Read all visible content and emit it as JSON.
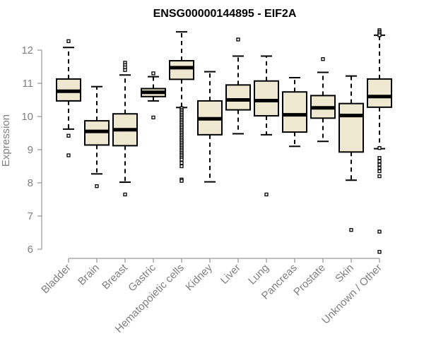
{
  "chart_data": {
    "type": "boxplot",
    "title": "ENSG00000144895 - EIF2A",
    "xlabel": "",
    "ylabel": "Expression",
    "ylim": [
      5.7,
      12.9
    ],
    "yticks": [
      6,
      7,
      8,
      9,
      10,
      11,
      12
    ],
    "grid": false,
    "legend": "none",
    "colors": {
      "box_fill": "#efe8d0",
      "stroke": "#000000",
      "axis": "#808080",
      "label": "#808080"
    },
    "categories": [
      "Bladder",
      "Brain",
      "Breast",
      "Gastric",
      "Hematopoietic cells",
      "Kidney",
      "Liver",
      "Lung",
      "Pancreas",
      "Prostate",
      "Skin",
      "Unknown / Other"
    ],
    "boxes": [
      {
        "name": "Bladder",
        "whisker_low": 9.62,
        "q1": 10.47,
        "median": 10.76,
        "q3": 11.13,
        "whisker_high": 12.08,
        "outliers": [
          12.27,
          9.42,
          8.83
        ]
      },
      {
        "name": "Brain",
        "whisker_low": 8.27,
        "q1": 9.14,
        "median": 9.55,
        "q3": 9.87,
        "whisker_high": 10.9,
        "outliers": [
          7.9
        ]
      },
      {
        "name": "Breast",
        "whisker_low": 8.02,
        "q1": 9.12,
        "median": 9.6,
        "q3": 10.08,
        "whisker_high": 11.25,
        "outliers": [
          11.62,
          11.55,
          11.48,
          11.4,
          7.65
        ]
      },
      {
        "name": "Gastric",
        "whisker_low": 10.47,
        "q1": 10.6,
        "median": 10.73,
        "q3": 10.84,
        "whisker_high": 11.2,
        "outliers": [
          11.3,
          9.97
        ]
      },
      {
        "name": "Hematopoietic cells",
        "whisker_low": 10.27,
        "q1": 11.12,
        "median": 11.47,
        "q3": 11.68,
        "whisker_high": 12.55,
        "outliers": [
          10.25,
          10.2,
          10.15,
          10.1,
          10.05,
          10.0,
          9.95,
          9.9,
          9.85,
          9.8,
          9.75,
          9.7,
          9.65,
          9.6,
          9.55,
          9.5,
          9.45,
          9.4,
          9.35,
          9.3,
          9.25,
          9.2,
          9.15,
          9.1,
          9.05,
          9.0,
          8.95,
          8.9,
          8.85,
          8.8,
          8.75,
          8.7,
          8.6,
          8.5,
          8.1,
          8.06
        ]
      },
      {
        "name": "Kidney",
        "whisker_low": 8.03,
        "q1": 9.45,
        "median": 9.93,
        "q3": 10.47,
        "whisker_high": 11.35,
        "outliers": []
      },
      {
        "name": "Liver",
        "whisker_low": 9.48,
        "q1": 10.2,
        "median": 10.5,
        "q3": 10.95,
        "whisker_high": 11.82,
        "outliers": [
          12.32
        ]
      },
      {
        "name": "Lung",
        "whisker_low": 9.45,
        "q1": 10.02,
        "median": 10.48,
        "q3": 11.07,
        "whisker_high": 11.82,
        "outliers": [
          7.65
        ]
      },
      {
        "name": "Pancreas",
        "whisker_low": 9.1,
        "q1": 9.53,
        "median": 10.05,
        "q3": 10.74,
        "whisker_high": 11.17,
        "outliers": []
      },
      {
        "name": "Prostate",
        "whisker_low": 9.25,
        "q1": 9.95,
        "median": 10.26,
        "q3": 10.63,
        "whisker_high": 11.33,
        "outliers": [
          11.73
        ]
      },
      {
        "name": "Skin",
        "whisker_low": 8.08,
        "q1": 8.93,
        "median": 10.03,
        "q3": 10.39,
        "whisker_high": 11.22,
        "outliers": [
          6.58
        ]
      },
      {
        "name": "Unknown / Other",
        "whisker_low": 9.03,
        "q1": 10.28,
        "median": 10.6,
        "q3": 11.13,
        "whisker_high": 12.45,
        "outliers": [
          12.6,
          12.55,
          12.5,
          12.45,
          9.05,
          8.75,
          8.65,
          8.55,
          8.45,
          8.35,
          8.2,
          6.53,
          5.92
        ]
      }
    ]
  }
}
